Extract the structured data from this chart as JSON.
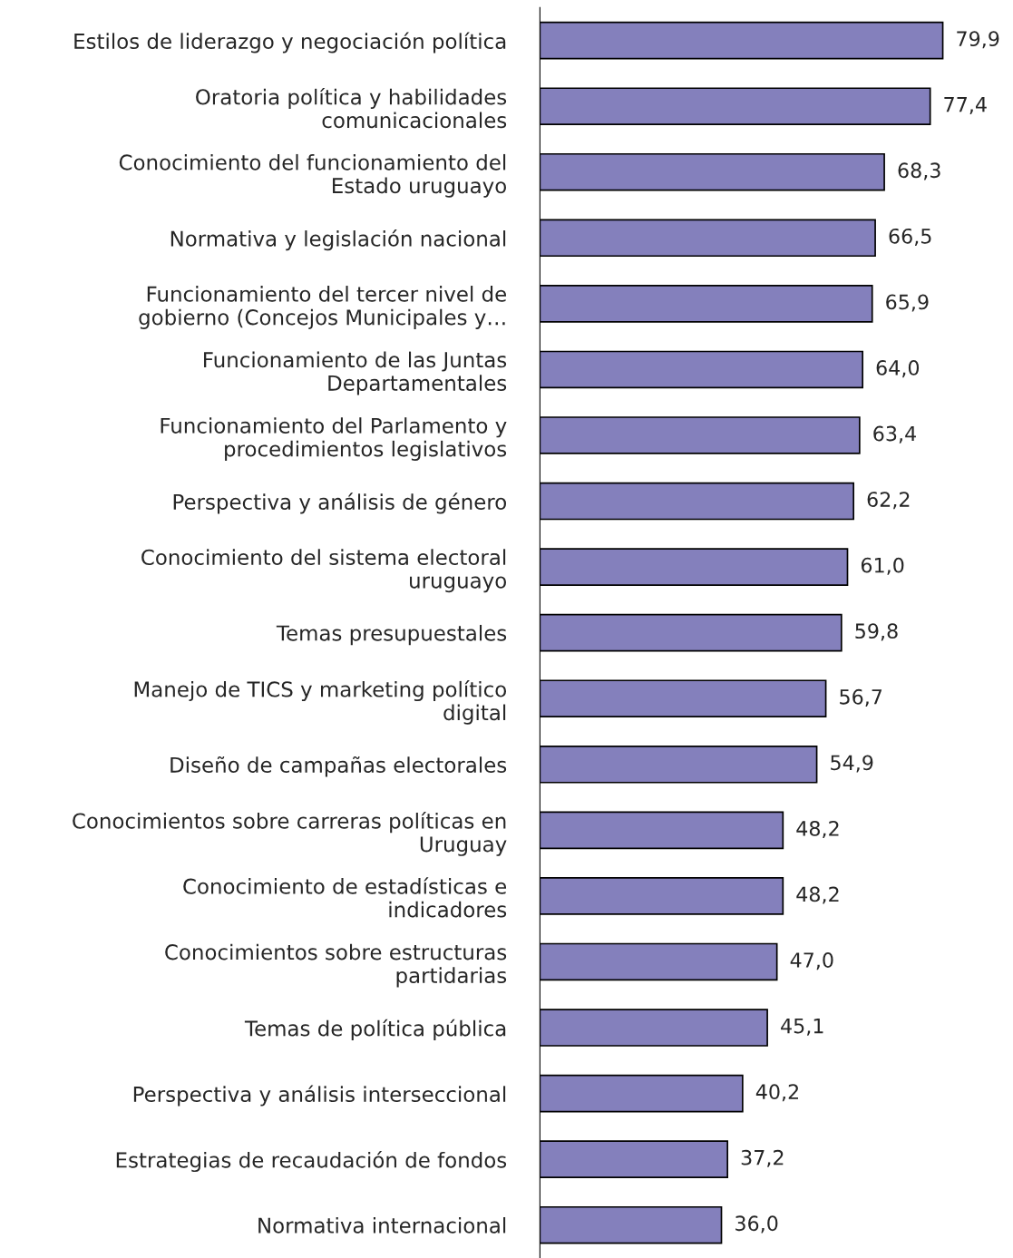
{
  "chart_data": {
    "type": "bar",
    "orientation": "horizontal",
    "color": "#8480bc",
    "value_labels": [
      "79,9",
      "77,4",
      "68,3",
      "66,5",
      "65,9",
      "64,0",
      "63,4",
      "62,2",
      "61,0",
      "59,8",
      "56,7",
      "54,9",
      "48,2",
      "48,2",
      "47,0",
      "45,1",
      "40,2",
      "37,2",
      "36,0"
    ],
    "categories": [
      "Estilos de liderazgo y negociación política",
      "Oratoria política y habilidades\ncomunicacionales",
      "Conocimiento del funcionamiento del\nEstado uruguayo",
      "Normativa y legislación nacional",
      "Funcionamiento del tercer nivel de\ngobierno (Concejos Municipales y…",
      "Funcionamiento de las Juntas\nDepartamentales",
      "Funcionamiento del Parlamento y\nprocedimientos legislativos",
      "Perspectiva y análisis de género",
      "Conocimiento del sistema electoral\nuruguayo",
      "Temas presupuestales",
      "Manejo de TICS y marketing político\ndigital",
      "Diseño de campañas electorales",
      "Conocimientos sobre carreras políticas en\nUruguay",
      "Conocimiento de estadísticas e\nindicadores",
      "Conocimientos sobre estructuras\npartidarias",
      "Temas de política pública",
      "Perspectiva y análisis interseccional",
      "Estrategias de recaudación de fondos",
      "Normativa internacional"
    ],
    "values": [
      79.9,
      77.4,
      68.3,
      66.5,
      65.9,
      64.0,
      63.4,
      62.2,
      61.0,
      59.8,
      56.7,
      54.9,
      48.2,
      48.2,
      47.0,
      45.1,
      40.2,
      37.2,
      36.0
    ]
  }
}
